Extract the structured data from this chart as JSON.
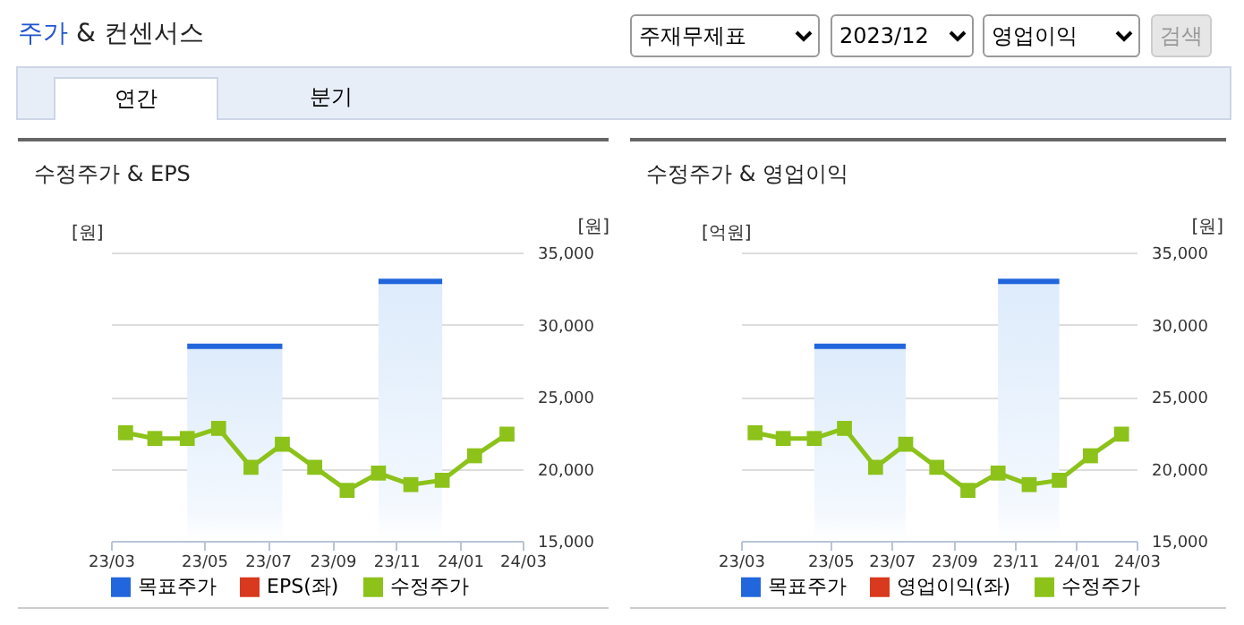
{
  "chart_data": [
    {
      "type": "other",
      "title": "주가 & 컨센서스",
      "annotations": [
        "주재무제표",
        "2023/12",
        "영업이익",
        "검색",
        "연간",
        "분기"
      ]
    },
    {
      "type": "line",
      "title": "수정주가 & EPS",
      "ylabel": "[원]",
      "y2label": "[원]",
      "legend": "bottom",
      "grid": "y",
      "x": [
        "2023-02-15",
        "2023-03-15",
        "2023-04-15",
        "2023-05-15",
        "2023-06-15",
        "2023-07-15",
        "2023-08-15",
        "2023-09-15",
        "2023-10-15",
        "2023-11-15",
        "2023-12-15",
        "2024-01-15",
        "2024-02-15"
      ],
      "xlim": [
        "2023-02-01",
        "2024-03-01"
      ],
      "xticks": [
        {
          "value": "2023-02-01",
          "label": "23/03"
        },
        {
          "value": "2023-05-01",
          "label": "23/05"
        },
        {
          "value": "2023-07-01",
          "label": "23/07"
        },
        {
          "value": "2023-09-01",
          "label": "23/09"
        },
        {
          "value": "2023-11-01",
          "label": "23/11"
        },
        {
          "value": "2024-01-01",
          "label": "24/01"
        },
        {
          "value": "2024-03-01",
          "label": "24/03"
        }
      ],
      "y2lim": [
        15000,
        35000
      ],
      "y2ticks": [
        {
          "value": 15000,
          "label": "15,000"
        },
        {
          "value": 20000,
          "label": "20,000"
        },
        {
          "value": 25000,
          "label": "25,000"
        },
        {
          "value": 30000,
          "label": "30,000"
        },
        {
          "value": 35000,
          "label": "35,000"
        }
      ],
      "series": [
        {
          "name": "목표주가",
          "type": "area",
          "axis": "y2",
          "color": "#2266dd",
          "values": [
            null,
            null,
            28500,
            28500,
            28500,
            28500,
            null,
            null,
            33000,
            33000,
            33000,
            null,
            null
          ]
        },
        {
          "name": "EPS(좌)",
          "type": "line",
          "axis": "y",
          "marker": "diamond",
          "color": "#d9391e",
          "values": [
            null,
            null,
            null,
            null,
            null,
            null,
            null,
            null,
            null,
            null,
            null,
            null,
            null
          ]
        },
        {
          "name": "수정주가",
          "type": "line",
          "axis": "y2",
          "marker": "square",
          "color": "#8cc21a",
          "values": [
            22500,
            22100,
            22100,
            22800,
            20100,
            21700,
            20100,
            18500,
            19700,
            18900,
            19200,
            20900,
            22400
          ]
        }
      ]
    },
    {
      "type": "line",
      "title": "수정주가 & 영업이익",
      "ylabel": "[억원]",
      "y2label": "[원]",
      "legend": "bottom",
      "grid": "y",
      "x": [
        "2023-02-15",
        "2023-03-15",
        "2023-04-15",
        "2023-05-15",
        "2023-06-15",
        "2023-07-15",
        "2023-08-15",
        "2023-09-15",
        "2023-10-15",
        "2023-11-15",
        "2023-12-15",
        "2024-01-15",
        "2024-02-15"
      ],
      "xlim": [
        "2023-02-01",
        "2024-03-01"
      ],
      "xticks": [
        {
          "value": "2023-02-01",
          "label": "23/03"
        },
        {
          "value": "2023-05-01",
          "label": "23/05"
        },
        {
          "value": "2023-07-01",
          "label": "23/07"
        },
        {
          "value": "2023-09-01",
          "label": "23/09"
        },
        {
          "value": "2023-11-01",
          "label": "23/11"
        },
        {
          "value": "2024-01-01",
          "label": "24/01"
        },
        {
          "value": "2024-03-01",
          "label": "24/03"
        }
      ],
      "y2lim": [
        15000,
        35000
      ],
      "y2ticks": [
        {
          "value": 15000,
          "label": "15,000"
        },
        {
          "value": 20000,
          "label": "20,000"
        },
        {
          "value": 25000,
          "label": "25,000"
        },
        {
          "value": 30000,
          "label": "30,000"
        },
        {
          "value": 35000,
          "label": "35,000"
        }
      ],
      "series": [
        {
          "name": "목표주가",
          "type": "area",
          "axis": "y2",
          "color": "#2266dd",
          "values": [
            null,
            null,
            28500,
            28500,
            28500,
            28500,
            null,
            null,
            33000,
            33000,
            33000,
            null,
            null
          ]
        },
        {
          "name": "영업이익(좌)",
          "type": "line",
          "axis": "y",
          "marker": "diamond",
          "color": "#d9391e",
          "values": [
            null,
            null,
            null,
            null,
            null,
            null,
            null,
            null,
            null,
            null,
            null,
            null,
            null
          ]
        },
        {
          "name": "수정주가",
          "type": "line",
          "axis": "y2",
          "marker": "square",
          "color": "#8cc21a",
          "values": [
            22500,
            22100,
            22100,
            22800,
            20100,
            21700,
            20100,
            18500,
            19700,
            18900,
            19200,
            20900,
            22400
          ]
        }
      ]
    }
  ]
}
